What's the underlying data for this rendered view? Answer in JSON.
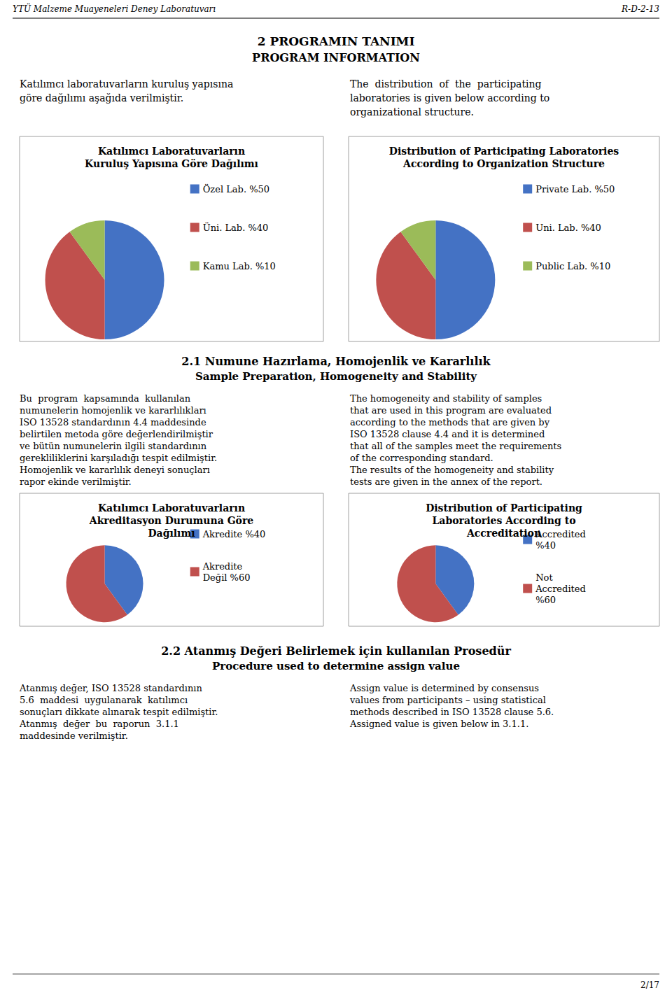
{
  "chart_data": [
    {
      "type": "pie",
      "title": "Katılımcı Laboratuvarların\nKuruluş Yapısına Göre Dağılımı",
      "categories": [
        "Özel Lab. %50",
        "Üni. Lab. %40",
        "Kamu Lab. %10"
      ],
      "values": [
        50,
        40,
        10
      ],
      "colors": [
        "#4472C4",
        "#C0504D",
        "#9BBB59"
      ],
      "legend": "right"
    },
    {
      "type": "pie",
      "title": "Distribution of Participating Laboratories\nAccording to Organization Structure",
      "categories": [
        "Private Lab. %50",
        "Uni. Lab. %40",
        "Public Lab. %10"
      ],
      "values": [
        50,
        40,
        10
      ],
      "colors": [
        "#4472C4",
        "#C0504D",
        "#9BBB59"
      ],
      "legend": "right"
    },
    {
      "type": "pie",
      "title": "Katılımcı Laboratuvarların\nAkreditasyon Durumuna Göre\nDağılımı",
      "categories": [
        "Akredite %40",
        "Akredite\nDeğil %60"
      ],
      "values": [
        40,
        60
      ],
      "colors": [
        "#4472C4",
        "#C0504D"
      ],
      "legend": "right"
    },
    {
      "type": "pie",
      "title": "Distribution of Participating\nLaboratories According to\nAccreditation",
      "categories": [
        "Accredited\n%40",
        "Not\nAccredited\n%60"
      ],
      "values": [
        40,
        60
      ],
      "colors": [
        "#4472C4",
        "#C0504D"
      ],
      "legend": "right"
    }
  ],
  "annotations": [
    "YTÜ Malzeme Muayeneleri Deney Laboratuvarı",
    "R-D-2-13",
    "2 PROGRAMIN TANIMI",
    "PROGRAM INFORMATION",
    "Katılımcı laboratuvarların kuruluş yapısına\ngöre dağılımı aşağıda verilmiştir.",
    "The  distribution  of  the  participating\nlaboratories is given below according to\norganizational structure.",
    "2.1 Numune Hazırlama, Homojenlik ve Kararlılık",
    "Sample Preparation, Homogeneity and Stability",
    "Bu  program  kapsamında  kullanılan\nnumunelerin homojenlik ve kararlılıkları\nISO 13528 standardının 4.4 maddesinde\nbelirtilen metoda göre değerlendirilmiştir\nve bütün numunelerin ilgili standardının\ngerekliliklerini karşıladığı tespit edilmiştir.\nHomojenlik ve kararlılık deneyi sonuçları\nrapor ekinde verilmiştir.",
    "The homogeneity and stability of samples\nthat are used in this program are evaluated\naccording to the methods that are given by\nISO 13528 clause 4.4 and it is determined\nthat all of the samples meet the requirements\nof the corresponding standard.\nThe results of the homogeneity and stability\ntests are given in the annex of the report.",
    "2.2 Atanmış Değeri Belirlemek için kullanılan Prosedür",
    "Procedure used to determine assign value",
    "Atanmış değer, ISO 13528 standardının\n5.6  maddesi  uygulanarak  katılımcı\nsonuçları dikkate alınarak tespit edilmiştir.\nAtanmış  değer  bu  raporun  3.1.1\nmaddesinde verilmiştir.",
    "Assign value is determined by consensus\nvalues from participants – using statistical\nmethods described in ISO 13528 clause 5.6.\nAssigned value is given below in 3.1.1.",
    "2/17"
  ]
}
